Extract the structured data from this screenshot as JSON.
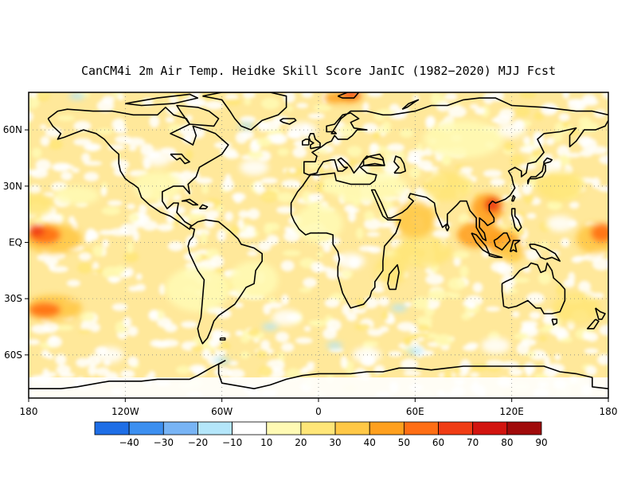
{
  "title": "CanCM4i 2m Air Temp. Heidke Skill Score JanIC (1982−2020) MJJ Fcst",
  "map": {
    "projection": "cylindrical-equidistant",
    "lon_range": [
      -180,
      180
    ],
    "lat_range": [
      -83,
      80
    ],
    "grid": true,
    "lat_ticks": [
      {
        "value": 60,
        "label": "60N"
      },
      {
        "value": 30,
        "label": "30N"
      },
      {
        "value": 0,
        "label": "EQ"
      },
      {
        "value": -30,
        "label": "30S"
      },
      {
        "value": -60,
        "label": "60S"
      }
    ],
    "lon_ticks": [
      {
        "value": -180,
        "label": "180"
      },
      {
        "value": -120,
        "label": "120W"
      },
      {
        "value": -60,
        "label": "60W"
      },
      {
        "value": 0,
        "label": "0"
      },
      {
        "value": 60,
        "label": "60E"
      },
      {
        "value": 120,
        "label": "120E"
      },
      {
        "value": 180,
        "label": "180"
      }
    ],
    "field_description": "Mostly positive skill (10-40) over oceans and land; high skill (60-90) in Indo-Pacific warm pool, Southeast Asia, tropical Pacific near 180, and eastern North Pacific off the date line; small negative patches near Antarctica and North Atlantic."
  },
  "colorbar": {
    "levels": [
      "−40",
      "−30",
      "−20",
      "−10",
      "10",
      "20",
      "30",
      "40",
      "50",
      "60",
      "70",
      "80",
      "90"
    ],
    "colors": [
      "#1e6ee6",
      "#3c8ff0",
      "#78b4f5",
      "#b4e6fa",
      "#ffffff",
      "#fffab4",
      "#ffe678",
      "#ffc846",
      "#ffa01e",
      "#ff6e14",
      "#f03c14",
      "#d2140f",
      "#a00a0a"
    ]
  },
  "chart_data": {
    "type": "heatmap",
    "title": "CanCM4i 2m Air Temp. Heidke Skill Score JanIC (1982−2020) MJJ Fcst",
    "variable": "Heidke Skill Score",
    "x_range": [
      -180,
      180
    ],
    "y_range": [
      -83,
      80
    ],
    "color_levels": [
      -40,
      -30,
      -20,
      -10,
      10,
      20,
      30,
      40,
      50,
      60,
      70,
      80,
      90
    ],
    "high_skill_regions": [
      {
        "name": "Southeast Asia / Maritime Continent",
        "lon": 105,
        "lat": 15,
        "value_range": [
          60,
          90
        ]
      },
      {
        "name": "Western tropical Pacific near 180",
        "lon": 175,
        "lat": 0,
        "value_range": [
          50,
          70
        ]
      },
      {
        "name": "Central tropical Pacific near dateline",
        "lon": -170,
        "lat": 5,
        "value_range": [
          50,
          70
        ]
      },
      {
        "name": "Southwest Pacific",
        "lon": -170,
        "lat": -35,
        "value_range": [
          50,
          70
        ]
      },
      {
        "name": "Arctic north of Europe",
        "lon": 20,
        "lat": 78,
        "value_range": [
          50,
          70
        ]
      },
      {
        "name": "Arabian Sea / Indian Ocean",
        "lon": 60,
        "lat": 10,
        "value_range": [
          40,
          60
        ]
      }
    ],
    "negative_skill_regions": [
      {
        "name": "Southern Ocean south of Africa",
        "lon": 10,
        "lat": -55,
        "value_range": [
          -20,
          -10
        ]
      },
      {
        "name": "Antarctic Peninsula",
        "lon": -60,
        "lat": -63,
        "value_range": [
          -40,
          -10
        ]
      }
    ]
  }
}
